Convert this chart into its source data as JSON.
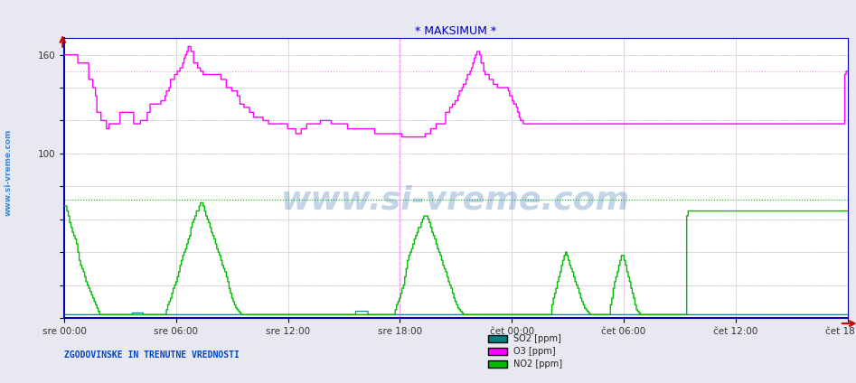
{
  "title": "* MAKSIMUM *",
  "title_color": "#0000bb",
  "bg_color": "#e8e8f0",
  "plot_bg_color": "#ffffff",
  "ylabel_left": "www.si-vreme.com",
  "footer_left": "ZGODOVINSKE IN TRENUTNE VREDNOSTI",
  "x_tick_labels": [
    "sre 00:00",
    "sre 06:00",
    "sre 12:00",
    "sre 18:00",
    "čet 00:00",
    "čet 06:00",
    "čet 12:00",
    "čet 18:00"
  ],
  "y_tick_labels": [
    "160",
    "100"
  ],
  "ylim": [
    0,
    170
  ],
  "xlim": [
    0,
    575
  ],
  "legend": [
    {
      "label": "SO2 [ppm]",
      "color": "#008080"
    },
    {
      "label": "O3 [ppm]",
      "color": "#ff00ff"
    },
    {
      "label": "NO2 [ppm]",
      "color": "#00bb00"
    }
  ],
  "hlines_dotted": [
    {
      "y": 150,
      "color": "#ff88ff",
      "linewidth": 0.8
    },
    {
      "y": 72,
      "color": "#00bb00",
      "linewidth": 0.8
    },
    {
      "y": 2,
      "color": "#008080",
      "linewidth": 0.8
    }
  ],
  "vline_color": "#ff88ff",
  "axis_color": "#0000bb",
  "grid_color": "#ccccdd",
  "watermark": "www.si-vreme.com",
  "n_points": 576,
  "o3": [
    160,
    160,
    160,
    160,
    160,
    160,
    160,
    160,
    160,
    160,
    155,
    155,
    155,
    155,
    155,
    155,
    155,
    155,
    145,
    145,
    145,
    140,
    140,
    135,
    125,
    125,
    125,
    120,
    120,
    120,
    120,
    115,
    115,
    118,
    118,
    118,
    118,
    118,
    118,
    118,
    118,
    125,
    125,
    125,
    125,
    125,
    125,
    125,
    125,
    125,
    125,
    118,
    118,
    118,
    118,
    118,
    120,
    120,
    120,
    120,
    120,
    125,
    125,
    130,
    130,
    130,
    130,
    130,
    130,
    130,
    130,
    132,
    132,
    132,
    135,
    138,
    138,
    140,
    145,
    145,
    145,
    148,
    148,
    150,
    150,
    152,
    152,
    155,
    158,
    160,
    162,
    165,
    165,
    162,
    162,
    155,
    155,
    155,
    152,
    152,
    150,
    150,
    148,
    148,
    148,
    148,
    148,
    148,
    148,
    148,
    148,
    148,
    148,
    148,
    148,
    145,
    145,
    145,
    145,
    140,
    140,
    140,
    140,
    138,
    138,
    138,
    138,
    135,
    135,
    130,
    130,
    130,
    128,
    128,
    128,
    128,
    125,
    125,
    125,
    122,
    122,
    122,
    122,
    122,
    122,
    122,
    120,
    120,
    120,
    120,
    118,
    118,
    118,
    118,
    118,
    118,
    118,
    118,
    118,
    118,
    118,
    118,
    118,
    118,
    115,
    115,
    115,
    115,
    115,
    115,
    112,
    112,
    112,
    112,
    115,
    115,
    115,
    115,
    118,
    118,
    118,
    118,
    118,
    118,
    118,
    118,
    118,
    118,
    120,
    120,
    120,
    120,
    120,
    120,
    120,
    120,
    118,
    118,
    118,
    118,
    118,
    118,
    118,
    118,
    118,
    118,
    118,
    118,
    115,
    115,
    115,
    115,
    115,
    115,
    115,
    115,
    115,
    115,
    115,
    115,
    115,
    115,
    115,
    115,
    115,
    115,
    115,
    115,
    112,
    112,
    112,
    112,
    112,
    112,
    112,
    112,
    112,
    112,
    112,
    112,
    112,
    112,
    112,
    112,
    112,
    112,
    112,
    112,
    110,
    110,
    110,
    110,
    110,
    110,
    110,
    110,
    110,
    110,
    110,
    110,
    110,
    110,
    110,
    110,
    110,
    112,
    112,
    112,
    112,
    115,
    115,
    115,
    115,
    118,
    118,
    118,
    118,
    118,
    118,
    118,
    125,
    125,
    125,
    128,
    128,
    130,
    130,
    132,
    132,
    135,
    138,
    138,
    140,
    142,
    142,
    145,
    148,
    148,
    150,
    152,
    155,
    158,
    160,
    162,
    162,
    160,
    155,
    155,
    150,
    148,
    148,
    148,
    145,
    145,
    145,
    142,
    142,
    142,
    140,
    140,
    140,
    140,
    140,
    140,
    140,
    140,
    138,
    135,
    135,
    132,
    130,
    130,
    128,
    125,
    122,
    120,
    120,
    118,
    118,
    118,
    118,
    118,
    118,
    118,
    118,
    118,
    118,
    118,
    118,
    118,
    118,
    118,
    118,
    118,
    118,
    118,
    118,
    118,
    118,
    118,
    118,
    118,
    118,
    118,
    118,
    118,
    118,
    118,
    118,
    118,
    118,
    118,
    118,
    118,
    118,
    118,
    118,
    118,
    118,
    118,
    118,
    118,
    118,
    118,
    118,
    118,
    118,
    118,
    118,
    118,
    118,
    118,
    118,
    118,
    118,
    118,
    118,
    118,
    118,
    118,
    118,
    118,
    118,
    118,
    118,
    118,
    118,
    118,
    118,
    118,
    118,
    118,
    118,
    118,
    118,
    118,
    118,
    118,
    118,
    118,
    118,
    118,
    118,
    118,
    118,
    118,
    118,
    118,
    118,
    118,
    118,
    118,
    118,
    118,
    118,
    118,
    118,
    118,
    118,
    118,
    118,
    118,
    118,
    118,
    118,
    118,
    118,
    118,
    118,
    118,
    118,
    118,
    118,
    118,
    118,
    118,
    118,
    118,
    118,
    118,
    118,
    118,
    118,
    118,
    118,
    118,
    118,
    118,
    118,
    118,
    118,
    118,
    118,
    118,
    118,
    118,
    118,
    118,
    118,
    118,
    118,
    118,
    118,
    118,
    118,
    118,
    118,
    118,
    118,
    118,
    118,
    118,
    118,
    118,
    118,
    118,
    118,
    118,
    118,
    118,
    118,
    118,
    118,
    118,
    118,
    118,
    118,
    118,
    118,
    118,
    118,
    118,
    118,
    118,
    118,
    118,
    118,
    118,
    118,
    118,
    118,
    118,
    118,
    118,
    118,
    118,
    118,
    118,
    118,
    118,
    118,
    118,
    118,
    118,
    118,
    118,
    118,
    118,
    118,
    118,
    118,
    118,
    118,
    118,
    118,
    118,
    118,
    118,
    118,
    118,
    118,
    118,
    118,
    118,
    118,
    118,
    118,
    118,
    118,
    118,
    118,
    118,
    118,
    118,
    118,
    118,
    118,
    118,
    118,
    118,
    118,
    118,
    118,
    148,
    150
  ],
  "no2": [
    68,
    68,
    65,
    62,
    58,
    55,
    52,
    50,
    48,
    45,
    40,
    35,
    32,
    30,
    28,
    25,
    22,
    20,
    18,
    16,
    14,
    12,
    10,
    8,
    6,
    4,
    2,
    2,
    2,
    2,
    2,
    2,
    2,
    2,
    2,
    2,
    2,
    2,
    2,
    2,
    2,
    2,
    2,
    2,
    2,
    2,
    2,
    2,
    2,
    2,
    2,
    2,
    2,
    2,
    2,
    2,
    2,
    2,
    2,
    2,
    2,
    2,
    2,
    2,
    2,
    2,
    2,
    2,
    2,
    2,
    2,
    2,
    2,
    2,
    2,
    5,
    8,
    10,
    12,
    15,
    18,
    20,
    22,
    25,
    28,
    32,
    35,
    38,
    40,
    42,
    45,
    48,
    50,
    55,
    58,
    60,
    62,
    65,
    65,
    68,
    70,
    70,
    68,
    65,
    62,
    60,
    58,
    55,
    52,
    50,
    48,
    45,
    42,
    40,
    38,
    35,
    32,
    30,
    28,
    25,
    22,
    18,
    15,
    12,
    10,
    8,
    6,
    5,
    4,
    3,
    2,
    2,
    2,
    2,
    2,
    2,
    2,
    2,
    2,
    2,
    2,
    2,
    2,
    2,
    2,
    2,
    2,
    2,
    2,
    2,
    2,
    2,
    2,
    2,
    2,
    2,
    2,
    2,
    2,
    2,
    2,
    2,
    2,
    2,
    2,
    2,
    2,
    2,
    2,
    2,
    2,
    2,
    2,
    2,
    2,
    2,
    2,
    2,
    2,
    2,
    2,
    2,
    2,
    2,
    2,
    2,
    2,
    2,
    2,
    2,
    2,
    2,
    2,
    2,
    2,
    2,
    2,
    2,
    2,
    2,
    2,
    2,
    2,
    2,
    2,
    2,
    2,
    2,
    2,
    2,
    2,
    2,
    2,
    2,
    2,
    2,
    2,
    2,
    2,
    2,
    2,
    2,
    2,
    2,
    2,
    2,
    2,
    2,
    2,
    2,
    2,
    2,
    2,
    2,
    2,
    2,
    2,
    2,
    2,
    2,
    2,
    2,
    2,
    5,
    8,
    10,
    12,
    15,
    18,
    20,
    25,
    30,
    35,
    38,
    40,
    42,
    45,
    48,
    50,
    52,
    55,
    55,
    58,
    60,
    62,
    62,
    62,
    60,
    58,
    55,
    52,
    50,
    48,
    45,
    42,
    40,
    38,
    35,
    32,
    30,
    28,
    25,
    22,
    20,
    18,
    15,
    12,
    10,
    8,
    6,
    5,
    4,
    3,
    2,
    2,
    2,
    2,
    2,
    2,
    2,
    2,
    2,
    2,
    2,
    2,
    2,
    2,
    2,
    2,
    2,
    2,
    2,
    2,
    2,
    2,
    2,
    2,
    2,
    2,
    2,
    2,
    2,
    2,
    2,
    2,
    2,
    2,
    2,
    2,
    2,
    2,
    2,
    2,
    2,
    2,
    2,
    2,
    2,
    2,
    2,
    2,
    2,
    2,
    2,
    2,
    2,
    2,
    2,
    2,
    2,
    2,
    2,
    2,
    2,
    2,
    2,
    2,
    2,
    8,
    12,
    15,
    18,
    22,
    25,
    28,
    32,
    35,
    38,
    40,
    38,
    35,
    32,
    30,
    28,
    25,
    22,
    20,
    18,
    15,
    12,
    10,
    8,
    6,
    5,
    4,
    3,
    2,
    2,
    2,
    2,
    2,
    2,
    2,
    2,
    2,
    2,
    2,
    2,
    2,
    2,
    2,
    8,
    12,
    18,
    22,
    25,
    28,
    32,
    35,
    38,
    38,
    35,
    32,
    28,
    25,
    22,
    18,
    15,
    12,
    8,
    5,
    4,
    3,
    2,
    2,
    2,
    2,
    2,
    2,
    2,
    2,
    2,
    2,
    2,
    2,
    2,
    2,
    2,
    2,
    2,
    2,
    2,
    2,
    2,
    2,
    2,
    2,
    2,
    2,
    2,
    2,
    2,
    2,
    2,
    2,
    2,
    2,
    62,
    65
  ],
  "so2": [
    2,
    2,
    2,
    2,
    2,
    2,
    2,
    2,
    2,
    2,
    2,
    2,
    2,
    2,
    2,
    2,
    2,
    2,
    2,
    2,
    2,
    2,
    2,
    2,
    2,
    2,
    2,
    2,
    2,
    2,
    2,
    2,
    2,
    2,
    2,
    2,
    2,
    2,
    2,
    2,
    2,
    2,
    2,
    2,
    2,
    2,
    2,
    2,
    2,
    2,
    3,
    3,
    3,
    3,
    3,
    3,
    3,
    3,
    2,
    2,
    2,
    2,
    2,
    2,
    2,
    2,
    2,
    2,
    2,
    2,
    2,
    2,
    2,
    2,
    2,
    2,
    2,
    2,
    2,
    2,
    2,
    2,
    2,
    2,
    2,
    2,
    2,
    2,
    2,
    2,
    2,
    2,
    2,
    2,
    2,
    2,
    2,
    2,
    2,
    2,
    2,
    2,
    2,
    2,
    2,
    2,
    2,
    2,
    2,
    2,
    2,
    2,
    2,
    2,
    2,
    2,
    2,
    2,
    2,
    2,
    2,
    2,
    2,
    2,
    2,
    2,
    2,
    2,
    2,
    2,
    2,
    2,
    2,
    2,
    2,
    2,
    2,
    2,
    2,
    2,
    2,
    2,
    2,
    2,
    2,
    2,
    2,
    2,
    2,
    2,
    2,
    2,
    2,
    2,
    2,
    2,
    2,
    2,
    2,
    2,
    2,
    2,
    2,
    2,
    2,
    2,
    2,
    2,
    2,
    2,
    2,
    2,
    2,
    2,
    2,
    2,
    2,
    2,
    2,
    2,
    2,
    2,
    2,
    2,
    2,
    2,
    2,
    2,
    2,
    2,
    2,
    2,
    2,
    2,
    2,
    2,
    2,
    2,
    2,
    2,
    2,
    2,
    2,
    2,
    2,
    2,
    2,
    2,
    2,
    2,
    2,
    2,
    2,
    2,
    4,
    4,
    4,
    4,
    4,
    4,
    4,
    4,
    4,
    2,
    2,
    2,
    2,
    2,
    2,
    2,
    2,
    2,
    2,
    2,
    2,
    2,
    2,
    2,
    2,
    2,
    2,
    2,
    2,
    2,
    2,
    2,
    2,
    2,
    2,
    2,
    2,
    2,
    2,
    2,
    2,
    2,
    2,
    2,
    2,
    2,
    2,
    2,
    2,
    2,
    2,
    2,
    2,
    2,
    2,
    2,
    2,
    2,
    2,
    2,
    2,
    2,
    2,
    2,
    2,
    2,
    2,
    2,
    2,
    2,
    2,
    2,
    2,
    2,
    2,
    2,
    2,
    2,
    2,
    2,
    2,
    2,
    2,
    2,
    2,
    2,
    2,
    2,
    2,
    2,
    2,
    2,
    2,
    2,
    2,
    2,
    2,
    2,
    2,
    2,
    2,
    2,
    2,
    2,
    2,
    2,
    2,
    2,
    2,
    2,
    2,
    2,
    2,
    2,
    2,
    2,
    2,
    2,
    2,
    2,
    2,
    2,
    2,
    2,
    2,
    2,
    2,
    2,
    2,
    2,
    2,
    2,
    2,
    2,
    2,
    2,
    2,
    2,
    2,
    2,
    2,
    2,
    2,
    2,
    2,
    2,
    2,
    2,
    2,
    2,
    2,
    2,
    2,
    2,
    2,
    2,
    2,
    2,
    2,
    2,
    2,
    2,
    2,
    2,
    2,
    2,
    2,
    2,
    2,
    2,
    2,
    2,
    2,
    2,
    2,
    2,
    2,
    2,
    2,
    2,
    2,
    2,
    2,
    2,
    2,
    2,
    2,
    2,
    2,
    2,
    2,
    2,
    2,
    2,
    2,
    2,
    2,
    2,
    2,
    2,
    2,
    2,
    2,
    2,
    2,
    2,
    2,
    2,
    2,
    2,
    2,
    2,
    2,
    2,
    2,
    2,
    2,
    2,
    2,
    2,
    2,
    2,
    2,
    2,
    2,
    2,
    2,
    2,
    2,
    2,
    2,
    2,
    2,
    2,
    2,
    2,
    2,
    2,
    2,
    2,
    2,
    2,
    2,
    2,
    2,
    2,
    2,
    2,
    2,
    2,
    2,
    2,
    2,
    2,
    2,
    2,
    2,
    2,
    2,
    2,
    2,
    2,
    2,
    2,
    2,
    2,
    2,
    2,
    2,
    2,
    2,
    2,
    2,
    2,
    2,
    2,
    2,
    2,
    2,
    2,
    2,
    2,
    2,
    2,
    2,
    2,
    2,
    2,
    2,
    2,
    2,
    2,
    2,
    2,
    2,
    2,
    2,
    2,
    2,
    2,
    2,
    2,
    2,
    2,
    2,
    2,
    2,
    2,
    2,
    2,
    2,
    2,
    2,
    2,
    2,
    2,
    2,
    2,
    2,
    2,
    2,
    2,
    2,
    2,
    2,
    2,
    2,
    2,
    2,
    2,
    2,
    2,
    2,
    2,
    2,
    2,
    2,
    2,
    2,
    2,
    2,
    2,
    2,
    2,
    2,
    2,
    2,
    2,
    2,
    2,
    2,
    2,
    2,
    2,
    2,
    2,
    2,
    2,
    2,
    2,
    2,
    2,
    2,
    2,
    2,
    2,
    2,
    2,
    2,
    2,
    2,
    2
  ]
}
